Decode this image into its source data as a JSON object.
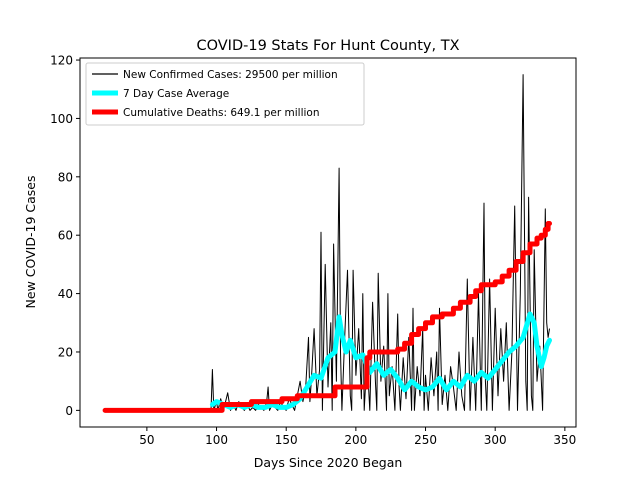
{
  "chart_data": {
    "type": "line",
    "title": "COVID-19 Stats For Hunt County, TX",
    "xlabel": "Days Since 2020 Began",
    "ylabel": "New COVID-19 Cases",
    "xlim": [
      2,
      358
    ],
    "ylim": [
      -5.7,
      120.7
    ],
    "xticks": [
      50,
      100,
      150,
      200,
      250,
      300,
      350
    ],
    "yticks": [
      0,
      20,
      40,
      60,
      80,
      100,
      120
    ],
    "grid": false,
    "legend_position": "top-left",
    "series": [
      {
        "name": "New Confirmed Cases: 29500 per million",
        "color": "#000000",
        "line_width": 1,
        "x": [
          20,
          60,
          90,
          96,
          97,
          98,
          100,
          101,
          103,
          105,
          106,
          108,
          110,
          112,
          114,
          116,
          118,
          120,
          122,
          124,
          126,
          128,
          130,
          132,
          134,
          136,
          137,
          138,
          140,
          142,
          144,
          146,
          148,
          150,
          152,
          154,
          156,
          158,
          160,
          162,
          164,
          166,
          167,
          168,
          170,
          172,
          174,
          175,
          176,
          178,
          180,
          182,
          183,
          184,
          186,
          188,
          189,
          190,
          192,
          194,
          196,
          197,
          198,
          200,
          202,
          204,
          205,
          206,
          208,
          210,
          212,
          214,
          215,
          216,
          218,
          220,
          222,
          223,
          224,
          226,
          228,
          230,
          231,
          232,
          234,
          236,
          238,
          240,
          241,
          242,
          244,
          246,
          248,
          249,
          250,
          252,
          254,
          256,
          258,
          259,
          260,
          262,
          264,
          266,
          268,
          270,
          272,
          274,
          276,
          278,
          280,
          282,
          284,
          286,
          288,
          290,
          292,
          293,
          294,
          296,
          298,
          300,
          302,
          304,
          306,
          308,
          310,
          312,
          314,
          316,
          318,
          320,
          322,
          323,
          324,
          326,
          327,
          328,
          330,
          332,
          334,
          336,
          337,
          338,
          339
        ],
        "y": [
          0,
          0,
          0,
          0,
          14,
          0,
          3,
          0,
          4,
          0,
          2,
          6,
          0,
          2,
          0,
          3,
          1,
          0,
          2,
          0,
          1,
          0,
          2,
          1,
          0,
          3,
          8,
          0,
          2,
          1,
          0,
          3,
          1,
          0,
          4,
          2,
          0,
          5,
          10,
          3,
          8,
          25,
          3,
          10,
          28,
          5,
          14,
          61,
          0,
          50,
          8,
          30,
          0,
          57,
          10,
          83,
          20,
          0,
          25,
          48,
          5,
          0,
          48,
          12,
          28,
          4,
          40,
          0,
          18,
          0,
          37,
          10,
          0,
          47,
          10,
          22,
          0,
          40,
          5,
          15,
          0,
          33,
          8,
          0,
          18,
          4,
          25,
          0,
          35,
          0,
          15,
          5,
          28,
          0,
          12,
          0,
          18,
          5,
          20,
          0,
          35,
          2,
          12,
          0,
          15,
          8,
          0,
          20,
          5,
          0,
          45,
          0,
          25,
          0,
          40,
          0,
          71,
          10,
          0,
          45,
          0,
          35,
          5,
          28,
          10,
          30,
          0,
          20,
          70,
          0,
          40,
          115,
          10,
          0,
          73,
          5,
          0,
          55,
          10,
          22,
          0,
          69,
          30,
          25,
          28
        ]
      },
      {
        "name": "7 Day Case Average",
        "color": "#00ffff",
        "line_width": 5,
        "x": [
          97,
          100,
          105,
          110,
          115,
          120,
          125,
          130,
          135,
          140,
          145,
          150,
          155,
          160,
          165,
          170,
          175,
          180,
          185,
          188,
          190,
          193,
          196,
          200,
          205,
          210,
          215,
          220,
          225,
          230,
          235,
          240,
          245,
          250,
          255,
          260,
          265,
          270,
          275,
          280,
          285,
          290,
          295,
          300,
          305,
          310,
          315,
          320,
          325,
          328,
          330,
          333,
          335,
          337,
          339
        ],
        "y": [
          2,
          3,
          2,
          1,
          2,
          1,
          2,
          1,
          1,
          2,
          1,
          1,
          2,
          4,
          8,
          12,
          11,
          18,
          20,
          32,
          26,
          20,
          24,
          18,
          19,
          13,
          16,
          12,
          14,
          11,
          7,
          10,
          8,
          7,
          8,
          11,
          7,
          10,
          8,
          12,
          10,
          13,
          11,
          14,
          17,
          20,
          22,
          25,
          33,
          30,
          22,
          15,
          18,
          22,
          24
        ]
      },
      {
        "name": "Cumulative Deaths: 649.1 per million",
        "color": "#ff0000",
        "line_width": 5,
        "step": true,
        "x": [
          20,
          90,
          100,
          104,
          125,
          147,
          158,
          185,
          208,
          210,
          230,
          235,
          240,
          245,
          250,
          255,
          262,
          270,
          275,
          282,
          286,
          290,
          300,
          305,
          310,
          315,
          320,
          325,
          330,
          333,
          336,
          338,
          339
        ],
        "y": [
          0,
          0,
          0,
          2,
          3,
          4,
          5,
          8,
          18,
          20,
          21,
          23,
          26,
          28,
          30,
          32,
          33,
          35,
          37,
          39,
          41,
          43,
          44,
          46,
          48,
          51,
          54,
          57,
          59,
          60,
          62,
          64,
          64
        ]
      }
    ]
  }
}
